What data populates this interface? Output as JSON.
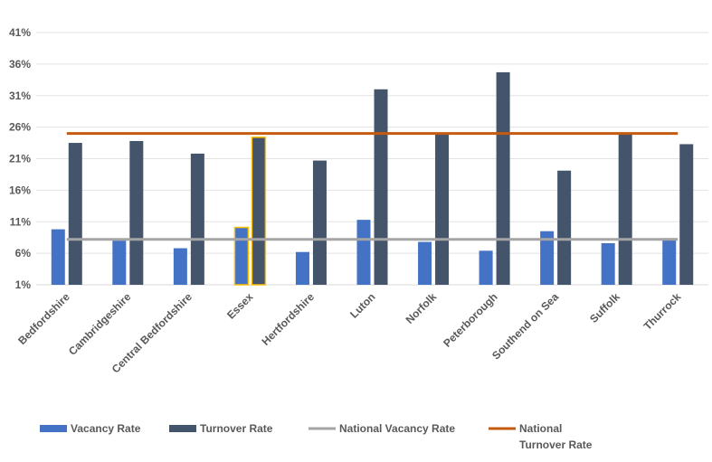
{
  "chart_data": {
    "type": "bar",
    "categories": [
      "Bedfordshire",
      "Cambridgeshire",
      "Central Bedfordshire",
      "Essex",
      "Hertfordshire",
      "Luton",
      "Norfolk",
      "Peterborough",
      "Southend on Sea",
      "Suffolk",
      "Thurrock"
    ],
    "series": [
      {
        "name": "Vacancy Rate",
        "kind": "bar",
        "color": "#4472C4",
        "values": [
          9.8,
          8.0,
          6.8,
          10.1,
          6.2,
          11.3,
          7.8,
          6.4,
          9.5,
          7.6,
          8.4
        ]
      },
      {
        "name": "Turnover Rate",
        "kind": "bar",
        "color": "#44546A",
        "values": [
          23.5,
          23.8,
          21.8,
          24.4,
          20.7,
          32.0,
          24.9,
          34.7,
          19.1,
          24.9,
          23.3
        ]
      },
      {
        "name": "National Vacancy Rate",
        "kind": "line",
        "color": "#A5A5A5",
        "values": [
          8.2,
          8.2,
          8.2,
          8.2,
          8.2,
          8.2,
          8.2,
          8.2,
          8.2,
          8.2,
          8.2
        ]
      },
      {
        "name": "National Turnover Rate",
        "kind": "line",
        "color": "#C55A11",
        "values": [
          25.0,
          25.0,
          25.0,
          25.0,
          25.0,
          25.0,
          25.0,
          25.0,
          25.0,
          25.0,
          25.0
        ]
      }
    ],
    "highlight": {
      "category": "Essex",
      "outline_color": "#FFC000"
    },
    "yticks": [
      "1%",
      "6%",
      "11%",
      "16%",
      "21%",
      "26%",
      "31%",
      "36%",
      "41%"
    ],
    "ytick_values": [
      1,
      6,
      11,
      16,
      21,
      26,
      31,
      36,
      41
    ],
    "ylim": [
      1,
      41
    ],
    "grid": true,
    "legend_position": "bottom",
    "legend": [
      {
        "label": "Vacancy Rate",
        "marker": "box",
        "color": "#4472C4"
      },
      {
        "label": "Turnover Rate",
        "marker": "box",
        "color": "#44546A"
      },
      {
        "label": "National Vacancy Rate",
        "marker": "line",
        "color": "#A5A5A5"
      },
      {
        "label_lines": [
          "National",
          "Turnover Rate"
        ],
        "marker": "line",
        "color": "#C55A11"
      }
    ],
    "title": "",
    "xlabel": "",
    "ylabel": ""
  }
}
